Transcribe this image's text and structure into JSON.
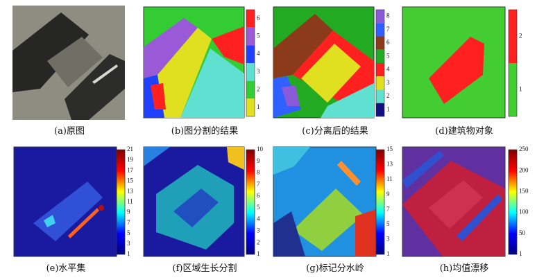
{
  "panels": [
    {
      "caption": "(a)原图"
    },
    {
      "caption": "(b)图分割的结果",
      "colorbar": {
        "style": "discrete",
        "colors": [
          "#ff2020",
          "#9a5ad8",
          "#2040ff",
          "#60e0d0",
          "#33cc33",
          "#e0e020"
        ],
        "ticks": [
          6,
          5,
          4,
          3,
          2,
          1
        ]
      }
    },
    {
      "caption": "(c)分离后的结果",
      "colorbar": {
        "style": "discrete",
        "colors": [
          "#8a5ad8",
          "#3060ff",
          "#8b3a1a",
          "#22aa22",
          "#ff2020",
          "#e0e020",
          "#60e0d0",
          "#101080"
        ],
        "ticks": [
          8,
          7,
          6,
          5,
          4,
          3,
          2,
          1
        ]
      }
    },
    {
      "caption": "(d)建筑物对象",
      "colorbar": {
        "style": "discrete",
        "colors": [
          "#ff2020",
          "#44cc33"
        ],
        "ticks": [
          2,
          1
        ]
      }
    },
    {
      "caption": "(e)水平集",
      "colorbar": {
        "style": "continuous",
        "colors": [
          "#800000",
          "#ff0000",
          "#ffff00",
          "#00ffff",
          "#0000ff",
          "#000080"
        ],
        "ticks": [
          21,
          19,
          17,
          15,
          13,
          11,
          9,
          7,
          5,
          3,
          1
        ]
      }
    },
    {
      "caption": "(f)区域生长分割",
      "colorbar": {
        "style": "continuous",
        "colors": [
          "#800000",
          "#ff0000",
          "#ffff00",
          "#00ffff",
          "#0000ff",
          "#000080"
        ],
        "ticks": [
          10,
          9,
          8,
          7,
          6,
          5,
          4,
          3,
          2,
          1
        ]
      }
    },
    {
      "caption": "(g)标记分水岭",
      "colorbar": {
        "style": "continuous",
        "colors": [
          "#800000",
          "#ff0000",
          "#ffff00",
          "#00ffff",
          "#0000ff",
          "#000080"
        ],
        "ticks": [
          15,
          13,
          11,
          9,
          7,
          5,
          3,
          1
        ]
      }
    },
    {
      "caption": "(h)均值漂移",
      "colorbar": {
        "style": "continuous",
        "colors": [
          "#800000",
          "#ff0000",
          "#ffff00",
          "#00ffff",
          "#0000ff",
          "#000080"
        ],
        "ticks": [
          250,
          200,
          150,
          100,
          50,
          1
        ]
      }
    }
  ]
}
